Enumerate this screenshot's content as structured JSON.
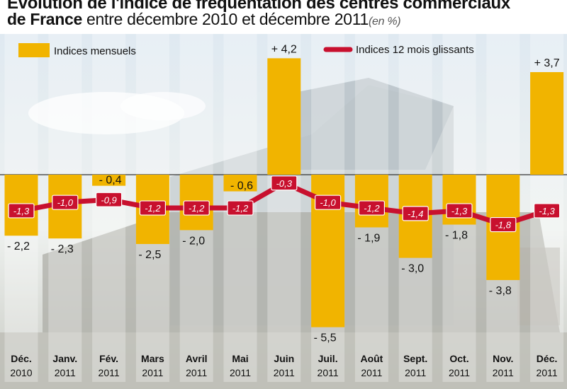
{
  "title": {
    "line1": "Évolution de l'indice de fréquentation des centres commerciaux",
    "line2_bold": "de France",
    "line2_rest": " entre décembre 2010 et décembre 2011",
    "unit": "(en %)"
  },
  "colors": {
    "bar": "#f1b400",
    "line": "#c8102e",
    "axis": "#333333"
  },
  "chart_data": {
    "type": "bar",
    "categories": [
      [
        "Déc.",
        "2010"
      ],
      [
        "Janv.",
        "2011"
      ],
      [
        "Fév.",
        "2011"
      ],
      [
        "Mars",
        "2011"
      ],
      [
        "Avril",
        "2011"
      ],
      [
        "Mai",
        "2011"
      ],
      [
        "Juin",
        "2011"
      ],
      [
        "Juil.",
        "2011"
      ],
      [
        "Août",
        "2011"
      ],
      [
        "Sept.",
        "2011"
      ],
      [
        "Oct.",
        "2011"
      ],
      [
        "Nov.",
        "2011"
      ],
      [
        "Déc.",
        "2011"
      ]
    ],
    "series": [
      {
        "name": "Indices mensuels",
        "type": "bar",
        "values": [
          -2.2,
          -2.3,
          -0.4,
          -2.5,
          -2.0,
          -0.6,
          4.2,
          -5.5,
          -1.9,
          -3.0,
          -1.8,
          -3.8,
          3.7
        ],
        "labels": [
          "- 2,2",
          "- 2,3",
          "- 0,4",
          "- 2,5",
          "- 2,0",
          "- 0,6",
          "+ 4,2",
          "- 5,5",
          "- 1,9",
          "- 3,0",
          "- 1,8",
          "- 3,8",
          "+ 3,7"
        ]
      },
      {
        "name": "Indices 12 mois glissants",
        "type": "line",
        "values": [
          -1.3,
          -1.0,
          -0.9,
          -1.2,
          -1.2,
          -1.2,
          -0.3,
          -1.0,
          -1.2,
          -1.4,
          -1.3,
          -1.8,
          -1.3
        ],
        "labels": [
          "-1,3",
          "-1,0",
          "-0,9",
          "-1,2",
          "-1,2",
          "-1,2",
          "-0,3",
          "-1,0",
          "-1,2",
          "-1,4",
          "-1,3",
          "-1,8",
          "-1,3"
        ]
      }
    ],
    "ylim": [
      -6,
      5.5
    ],
    "legend": "top"
  }
}
